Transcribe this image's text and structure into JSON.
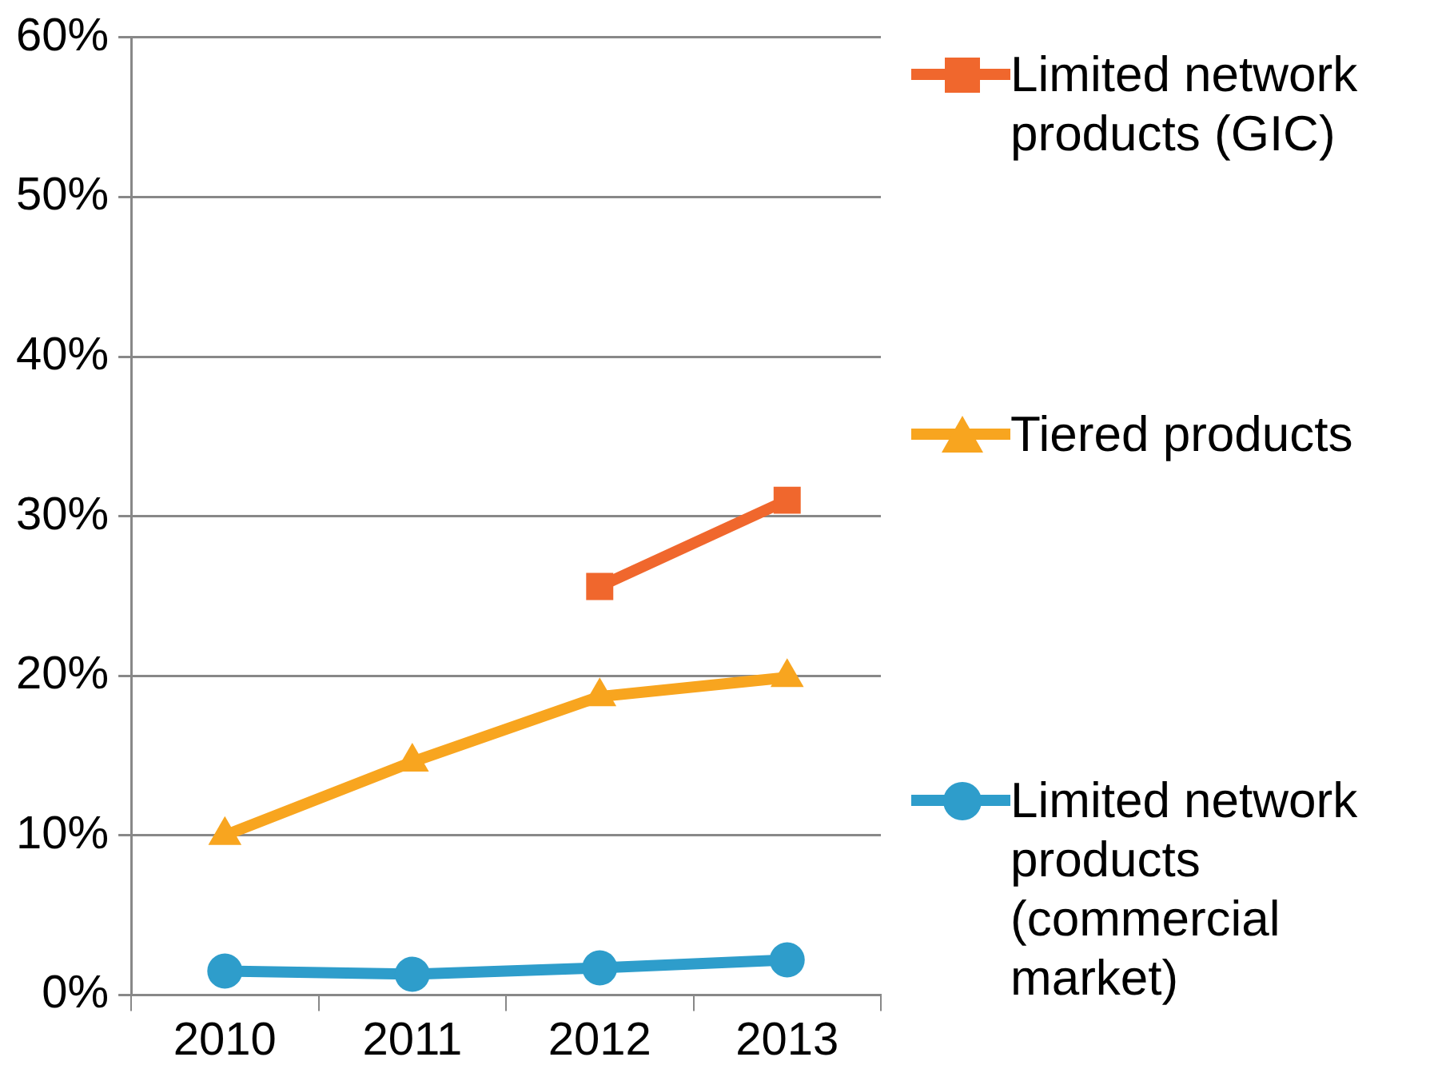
{
  "chart_data": {
    "type": "line",
    "categories": [
      "2010",
      "2011",
      "2012",
      "2013"
    ],
    "series": [
      {
        "name": "Limited network products (GIC)",
        "color": "#f0672d",
        "marker": "square",
        "values": [
          null,
          null,
          25.6,
          31.0
        ]
      },
      {
        "name": "Tiered products",
        "color": "#f8a51f",
        "marker": "triangle",
        "values": [
          10.0,
          14.6,
          18.7,
          19.9
        ]
      },
      {
        "name": "Limited network products (commercial market)",
        "color": "#2e9dcb",
        "marker": "circle",
        "values": [
          1.5,
          1.3,
          1.7,
          2.2
        ]
      }
    ],
    "ylim": [
      0,
      60
    ],
    "yticks": [
      {
        "value": 0,
        "label": "0%"
      },
      {
        "value": 10,
        "label": "10%"
      },
      {
        "value": 20,
        "label": "20%"
      },
      {
        "value": 30,
        "label": "30%"
      },
      {
        "value": 40,
        "label": "40%"
      },
      {
        "value": 50,
        "label": "50%"
      },
      {
        "value": 60,
        "label": "60%"
      }
    ],
    "grid": "y",
    "legend": "right"
  }
}
